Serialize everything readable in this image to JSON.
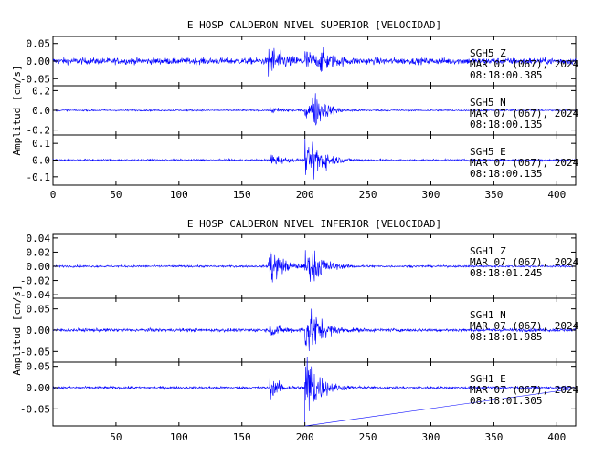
{
  "chart_data": [
    {
      "type": "line",
      "title": "E HOSP CALDERON NIVEL SUPERIOR [VELOCIDAD]",
      "ylabel": "Amplitud [cm/s]",
      "xlabel": "",
      "xlim": [
        0,
        415
      ],
      "xticks": [
        0,
        50,
        100,
        150,
        200,
        250,
        300,
        350,
        400
      ],
      "series_color": "#0000ff",
      "panels": [
        {
          "name": "SGH5   Z",
          "date": "MAR 07 (067), 2024",
          "time": "08:18:00.385",
          "ylim": [
            -0.07,
            0.07
          ],
          "yticks": [
            0.05,
            0.0,
            -0.05
          ],
          "ytick_labels": [
            "0.05",
            "0.00",
            "-0.05"
          ],
          "noise": 0.01,
          "envelope": [
            [
              171,
              0.065
            ],
            [
              200,
              0.035
            ],
            [
              212,
              0.03
            ]
          ]
        },
        {
          "name": "SGH5   N",
          "date": "MAR 07 (067), 2024",
          "time": "08:18:00.135",
          "ylim": [
            -0.25,
            0.25
          ],
          "yticks": [
            0.2,
            0.0,
            -0.2
          ],
          "ytick_labels": [
            "0.2",
            "0.0",
            "-0.2"
          ],
          "noise": 0.008,
          "envelope": [
            [
              172,
              0.05
            ],
            [
              200,
              0.12
            ],
            [
              206,
              0.22
            ]
          ]
        },
        {
          "name": "SGH5   E",
          "date": "MAR 07 (067), 2024",
          "time": "08:18:00.135",
          "ylim": [
            -0.15,
            0.15
          ],
          "yticks": [
            0.1,
            0.0,
            -0.1
          ],
          "ytick_labels": [
            "0.1",
            "0.0",
            "-0.1"
          ],
          "noise": 0.006,
          "envelope": [
            [
              172,
              0.06
            ],
            [
              200,
              0.1
            ],
            [
              206,
              0.14
            ]
          ]
        }
      ]
    },
    {
      "type": "line",
      "title": "E HOSP CALDERON NIVEL INFERIOR [VELOCIDAD]",
      "ylabel": "Amplitud [cm/s]",
      "xlabel": "",
      "xlim": [
        0,
        415
      ],
      "xticks": [
        50,
        100,
        150,
        200,
        250,
        300,
        350,
        400
      ],
      "series_color": "#0000ff",
      "panels": [
        {
          "name": "SGH1   Z",
          "date": "MAR 07 (067), 2024",
          "time": "08:18:01.245",
          "ylim": [
            -0.045,
            0.045
          ],
          "yticks": [
            0.04,
            0.02,
            0.0,
            -0.02,
            -0.04
          ],
          "ytick_labels": [
            "0.04",
            "0.02",
            "0.00",
            "-0.02",
            "-0.04"
          ],
          "noise": 0.0015,
          "envelope": [
            [
              171,
              0.045
            ],
            [
              200,
              0.03
            ],
            [
              205,
              0.02
            ]
          ]
        },
        {
          "name": "SGH1   N",
          "date": "MAR 07 (067), 2024",
          "time": "08:18:01.985",
          "ylim": [
            -0.075,
            0.075
          ],
          "yticks": [
            0.05,
            0.0,
            -0.05
          ],
          "ytick_labels": [
            "0.05",
            "0.00",
            "-0.05"
          ],
          "noise": 0.004,
          "envelope": [
            [
              172,
              0.02
            ],
            [
              200,
              0.06
            ],
            [
              203,
              0.04
            ]
          ]
        },
        {
          "name": "SGH1   E",
          "date": "MAR 07 (067), 2024",
          "time": "08:18:01.305",
          "ylim": [
            -0.09,
            0.06
          ],
          "yticks": [
            0.05,
            0.0,
            -0.05
          ],
          "ytick_labels": [
            "0.05",
            "0.00",
            "-0.05"
          ],
          "noise": 0.003,
          "envelope": [
            [
              172,
              0.03
            ],
            [
              200,
              0.045
            ],
            [
              200,
              -0.09
            ]
          ]
        }
      ]
    }
  ]
}
